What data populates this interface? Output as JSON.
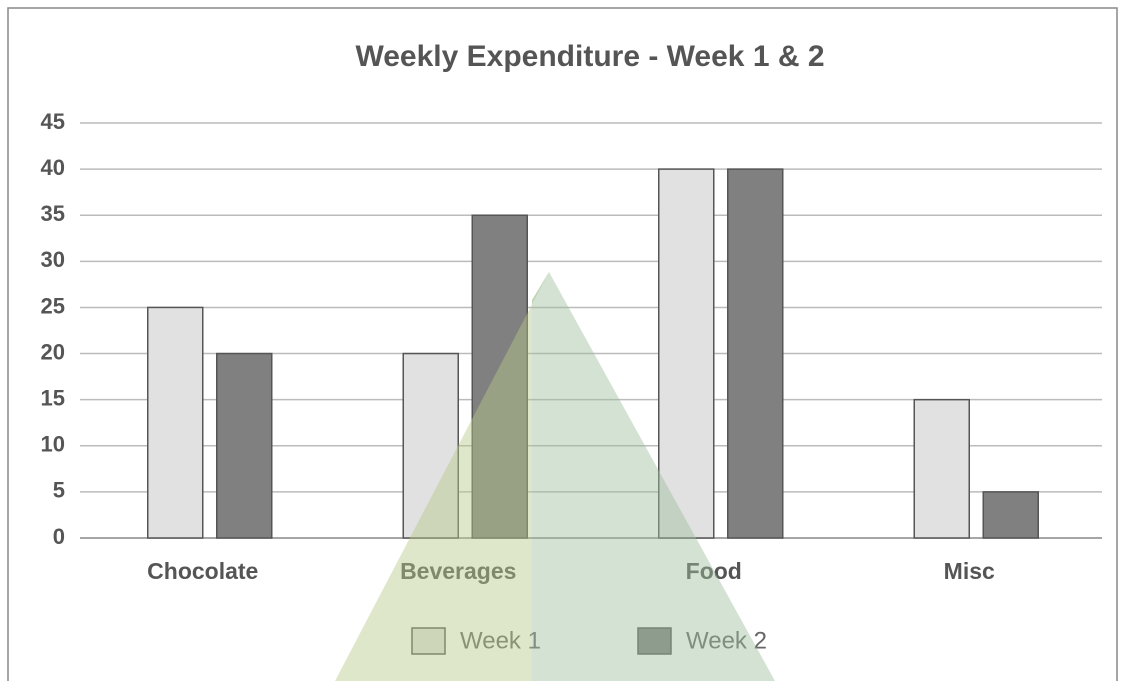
{
  "chart_data": {
    "type": "bar",
    "title": "Weekly Expenditure - Week 1 & 2",
    "categories": [
      "Chocolate",
      "Beverages",
      "Food",
      "Misc"
    ],
    "series": [
      {
        "name": "Week 1",
        "color": "#e1e1e1",
        "values": [
          25,
          20,
          40,
          15
        ]
      },
      {
        "name": "Week 2",
        "color": "#808080",
        "values": [
          20,
          35,
          40,
          5
        ]
      }
    ],
    "ylim": [
      0,
      45
    ],
    "yticks": [
      0,
      5,
      10,
      15,
      20,
      25,
      30,
      35,
      40,
      45
    ],
    "grid": true,
    "legend": "bottom"
  }
}
